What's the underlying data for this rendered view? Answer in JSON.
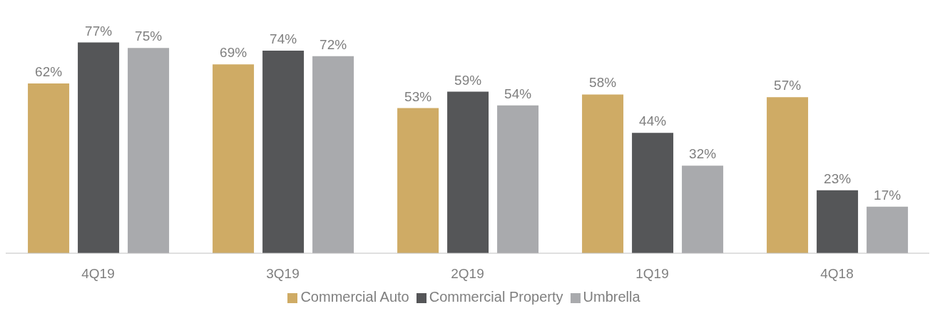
{
  "chart_data": {
    "type": "bar",
    "categories": [
      "4Q19",
      "3Q19",
      "2Q19",
      "1Q19",
      "4Q18"
    ],
    "series": [
      {
        "name": "Commercial Auto",
        "color": "#cfab65",
        "values": [
          62,
          69,
          53,
          58,
          57
        ],
        "value_labels": [
          "62%",
          "69%",
          "53%",
          "58%",
          "57%"
        ]
      },
      {
        "name": "Commercial Property",
        "color": "#555658",
        "values": [
          77,
          74,
          59,
          44,
          23
        ],
        "value_labels": [
          "77%",
          "74%",
          "59%",
          "44%",
          "23%"
        ]
      },
      {
        "name": "Umbrella",
        "color": "#a9aaad",
        "values": [
          75,
          72,
          54,
          32,
          17
        ],
        "value_labels": [
          "75%",
          "72%",
          "54%",
          "32%",
          "17%"
        ]
      }
    ],
    "legend": "bottom",
    "grid": false
  }
}
